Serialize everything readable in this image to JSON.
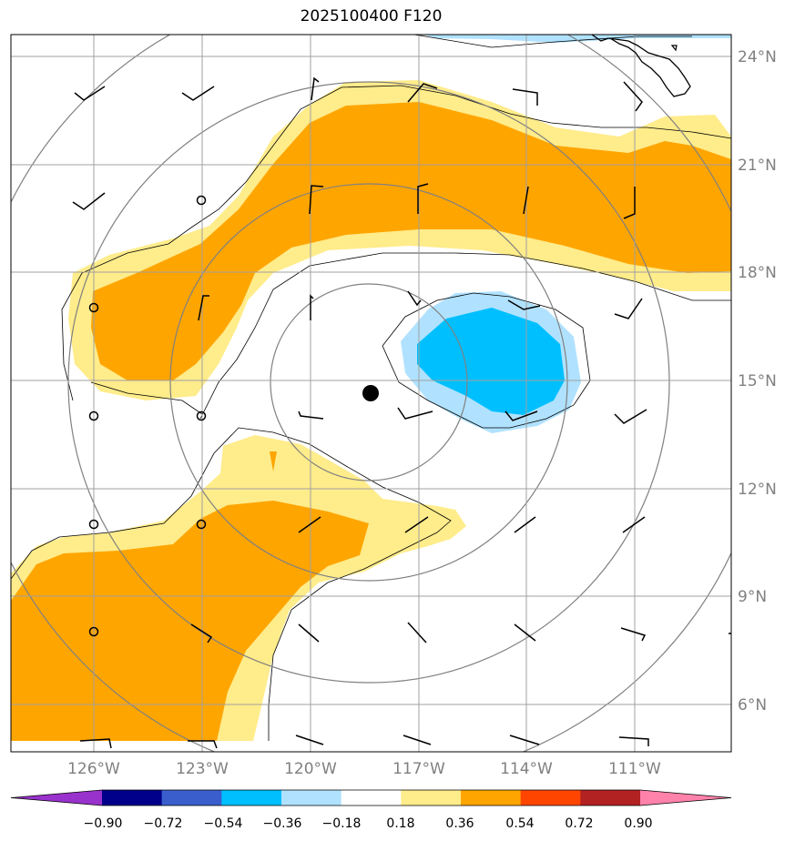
{
  "title": "2025100400 F120",
  "lat_labels": [
    "24°N",
    "21°N",
    "18°N",
    "15°N",
    "12°N",
    "9°N",
    "6°N"
  ],
  "lon_labels": [
    "126°W",
    "123°W",
    "120°W",
    "117°W",
    "114°W",
    "111°W"
  ],
  "colorbar": {
    "ticks": [
      "−0.90",
      "−0.72",
      "−0.54",
      "−0.36",
      "−0.18",
      "0.18",
      "0.36",
      "0.54",
      "0.72",
      "0.90"
    ],
    "colors": [
      "#9932cc",
      "#00008b",
      "#3a5fcd",
      "#00bfff",
      "#b0e2ff",
      "#ffffff",
      "#ffec8b",
      "#ffa500",
      "#ff4500",
      "#b22222",
      "#ff82ab"
    ]
  },
  "map": {
    "storm_center": "filled-black-circle",
    "fill_colors": {
      "light_yellow": "#ffec8b",
      "orange": "#ffa500",
      "light_blue": "#b0e2ff",
      "deep_sky_blue": "#00bfff"
    }
  }
}
